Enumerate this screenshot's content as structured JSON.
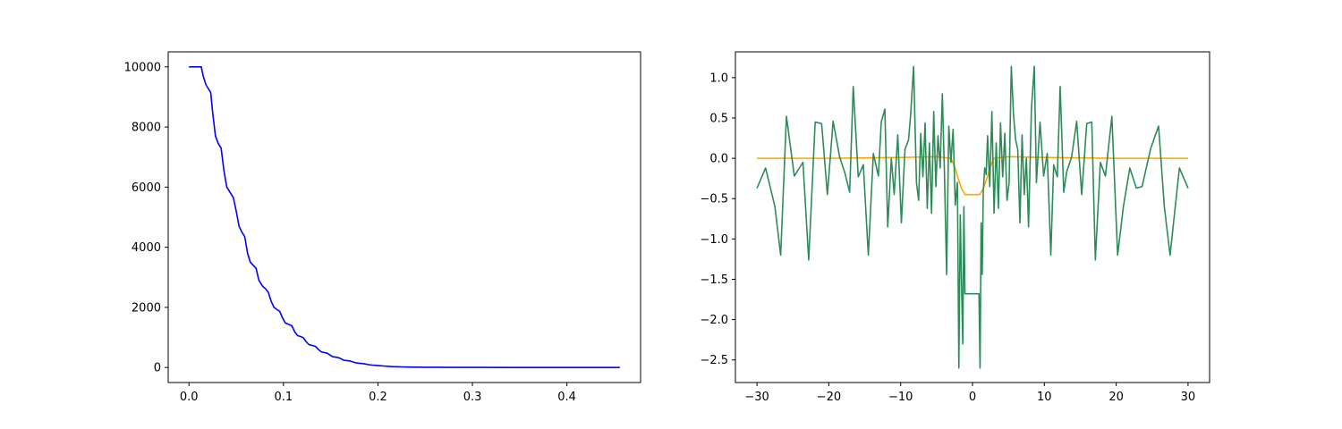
{
  "chart_data": [
    {
      "type": "line",
      "title": "",
      "xlabel": "",
      "ylabel": "",
      "xlim": [
        -0.022,
        0.478
      ],
      "ylim": [
        -500,
        10500
      ],
      "grid": false,
      "xticks": [
        0.0,
        0.1,
        0.2,
        0.3,
        0.4
      ],
      "xtick_labels": [
        "0.0",
        "0.1",
        "0.2",
        "0.3",
        "0.4"
      ],
      "yticks": [
        0,
        2000,
        4000,
        6000,
        8000,
        10000
      ],
      "ytick_labels": [
        "0",
        "2000",
        "4000",
        "6000",
        "8000",
        "10000"
      ],
      "series": [
        {
          "color": "#0000ff",
          "x": [
            0.0,
            0.013,
            0.015,
            0.018,
            0.021,
            0.023,
            0.025,
            0.028,
            0.031,
            0.034,
            0.037,
            0.04,
            0.044,
            0.047,
            0.05,
            0.053,
            0.056,
            0.059,
            0.062,
            0.065,
            0.068,
            0.071,
            0.074,
            0.078,
            0.081,
            0.084,
            0.087,
            0.09,
            0.093,
            0.096,
            0.099,
            0.102,
            0.106,
            0.109,
            0.112,
            0.115,
            0.118,
            0.121,
            0.124,
            0.127,
            0.131,
            0.134,
            0.137,
            0.14,
            0.143,
            0.146,
            0.149,
            0.152,
            0.155,
            0.158,
            0.161,
            0.164,
            0.167,
            0.17,
            0.173,
            0.176,
            0.18,
            0.184,
            0.187,
            0.19,
            0.194,
            0.198,
            0.202,
            0.206,
            0.21,
            0.215,
            0.22,
            0.225,
            0.232,
            0.24,
            0.25,
            0.262,
            0.275,
            0.29,
            0.31,
            0.34,
            0.38,
            0.42,
            0.456
          ],
          "y": [
            10000,
            10000,
            9700,
            9400,
            9250,
            9150,
            8500,
            7700,
            7450,
            7300,
            6550,
            6000,
            5800,
            5650,
            5200,
            4700,
            4500,
            4350,
            3800,
            3500,
            3400,
            3300,
            2900,
            2700,
            2620,
            2500,
            2200,
            2000,
            1930,
            1870,
            1650,
            1480,
            1430,
            1380,
            1180,
            1060,
            1030,
            990,
            860,
            760,
            730,
            700,
            600,
            520,
            500,
            480,
            420,
            360,
            345,
            330,
            290,
            240,
            230,
            220,
            190,
            160,
            140,
            130,
            115,
            95,
            80,
            70,
            60,
            50,
            40,
            30,
            25,
            20,
            15,
            10,
            8,
            6,
            4,
            3,
            2,
            1,
            0,
            0,
            0
          ]
        }
      ]
    },
    {
      "type": "line",
      "title": "",
      "xlabel": "",
      "ylabel": "",
      "xlim": [
        -33,
        33
      ],
      "ylim": [
        -2.78,
        1.32
      ],
      "grid": false,
      "xticks": [
        -30,
        -20,
        -10,
        0,
        10,
        20,
        30
      ],
      "xtick_labels": [
        "−30",
        "−20",
        "−10",
        "0",
        "10",
        "20",
        "30"
      ],
      "yticks": [
        -2.5,
        -2.0,
        -1.5,
        -1.0,
        -0.5,
        0.0,
        0.5,
        1.0
      ],
      "ytick_labels": [
        "−2.5",
        "−2.0",
        "−1.5",
        "−1.0",
        "−0.5",
        "0.0",
        "0.5",
        "1.0"
      ],
      "series": [
        {
          "color": "#ffa500",
          "x": [
            -30,
            -20,
            -10,
            -5,
            -3,
            -2.5,
            -2,
            -1.5,
            -1,
            1,
            1.5,
            2,
            2.5,
            3,
            5,
            10,
            20,
            30
          ],
          "y": [
            0,
            0,
            0.01,
            0.02,
            0.0,
            -0.1,
            -0.25,
            -0.38,
            -0.45,
            -0.45,
            -0.38,
            -0.25,
            -0.1,
            0.0,
            0.02,
            0.01,
            0,
            0
          ]
        },
        {
          "color": "#2e8b57",
          "x": [
            -30.0,
            -28.8,
            -27.5,
            -26.7,
            -25.9,
            -24.8,
            -23.6,
            -22.8,
            -21.9,
            -21.0,
            -20.2,
            -19.4,
            -18.5,
            -17.8,
            -17.1,
            -16.6,
            -15.9,
            -15.2,
            -14.5,
            -13.8,
            -13.1,
            -12.7,
            -12.2,
            -11.8,
            -11.3,
            -10.9,
            -10.4,
            -9.9,
            -9.4,
            -8.9,
            -8.6,
            -8.2,
            -7.8,
            -7.5,
            -7.2,
            -6.9,
            -6.6,
            -6.3,
            -6.0,
            -5.7,
            -5.4,
            -5.1,
            -4.8,
            -4.5,
            -4.2,
            -3.9,
            -3.6,
            -3.3,
            -3.0,
            -2.7,
            -2.4,
            -2.1,
            -1.9,
            -1.7,
            -1.5,
            -1.35,
            -1.2,
            -1.05,
            -0.9,
            0.9,
            1.05,
            1.2,
            1.35,
            1.5,
            1.7,
            1.9,
            2.1,
            2.4,
            2.7,
            3.0,
            3.3,
            3.6,
            3.9,
            4.2,
            4.5,
            4.8,
            5.1,
            5.4,
            5.7,
            6.0,
            6.3,
            6.6,
            6.9,
            7.2,
            7.5,
            7.8,
            8.2,
            8.6,
            8.9,
            9.4,
            9.9,
            10.4,
            10.9,
            11.3,
            11.8,
            12.2,
            12.7,
            13.1,
            13.8,
            14.5,
            15.2,
            15.9,
            16.6,
            17.1,
            17.8,
            18.5,
            19.4,
            20.2,
            21.0,
            21.9,
            22.8,
            23.6,
            24.8,
            25.9,
            26.7,
            27.5,
            28.8,
            30.0
          ],
          "y": [
            -0.37,
            -0.12,
            -0.6,
            -1.2,
            0.52,
            -0.22,
            -0.05,
            -1.26,
            0.45,
            0.43,
            -0.45,
            0.46,
            0.02,
            -0.17,
            -0.42,
            0.89,
            -0.23,
            -0.08,
            -1.2,
            0.06,
            -0.22,
            0.45,
            0.61,
            -0.85,
            0.0,
            -0.45,
            0.29,
            -0.8,
            0.11,
            0.23,
            0.55,
            1.14,
            -0.3,
            -0.52,
            0.31,
            -0.23,
            0.44,
            -0.62,
            0.19,
            -0.68,
            0.58,
            -0.35,
            0.28,
            -0.12,
            0.8,
            -0.2,
            -1.44,
            0.4,
            -0.05,
            0.36,
            -0.58,
            -0.3,
            -2.6,
            -0.7,
            -1.68,
            -2.3,
            -0.6,
            -1.68,
            -1.68,
            -1.68,
            -2.6,
            -0.8,
            -1.44,
            -0.4,
            -0.12,
            -0.2,
            0.28,
            -0.35,
            0.58,
            -0.68,
            0.19,
            -0.62,
            0.44,
            -0.23,
            0.31,
            -0.52,
            -0.3,
            1.14,
            0.55,
            0.23,
            0.11,
            -0.8,
            0.29,
            -0.45,
            0.0,
            -0.85,
            0.61,
            1.14,
            -0.3,
            0.45,
            -0.22,
            0.06,
            -1.2,
            -0.08,
            -0.23,
            0.89,
            -0.42,
            -0.17,
            0.02,
            0.46,
            -0.45,
            0.43,
            0.45,
            -1.26,
            -0.05,
            -0.22,
            0.52,
            -1.2,
            -0.6,
            -0.12,
            -0.37,
            -0.35,
            0.12,
            0.4,
            -0.6,
            -1.2,
            -0.12,
            -0.37
          ]
        }
      ]
    }
  ]
}
